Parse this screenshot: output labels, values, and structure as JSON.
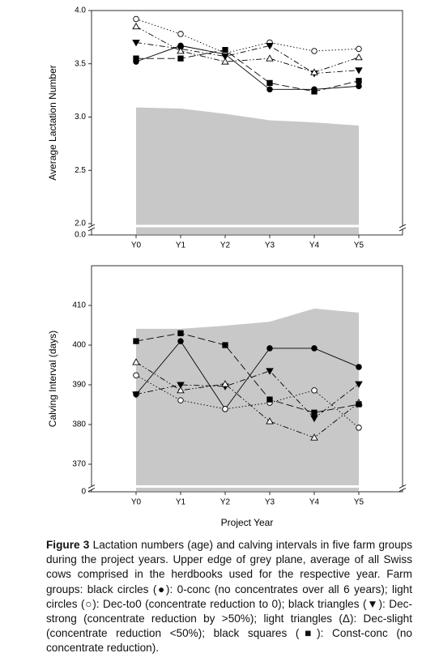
{
  "chart_data": [
    {
      "type": "line",
      "ylabel": "Average Lactation Number",
      "categories": [
        "Y0",
        "Y1",
        "Y2",
        "Y3",
        "Y4",
        "Y5"
      ],
      "ylim": [
        2.0,
        4.0
      ],
      "yticks": [
        {
          "value": 2.0,
          "label": "2.0"
        },
        2.5,
        {
          "value": 3.0,
          "label": "3.0"
        },
        3.5,
        {
          "value": 4.0,
          "label": "4.0"
        }
      ],
      "ybreak_tick": {
        "value": 0,
        "label": "0.0"
      },
      "area": {
        "color": "#c8c8c8",
        "values": [
          3.09,
          3.08,
          3.03,
          2.97,
          2.95,
          2.92
        ]
      },
      "series": [
        {
          "marker": "circle",
          "color": "#000000",
          "line_style": "solid",
          "values": [
            3.52,
            3.67,
            3.59,
            3.26,
            3.26,
            3.29
          ]
        },
        {
          "marker": "circle",
          "color": "#ffffff",
          "line_style": "dotted",
          "values": [
            3.92,
            3.78,
            3.6,
            3.7,
            3.62,
            3.64
          ]
        },
        {
          "marker": "triangle-down",
          "color": "#000000",
          "line_style": "dashdot",
          "values": [
            3.7,
            3.64,
            3.57,
            3.67,
            3.41,
            3.44
          ]
        },
        {
          "marker": "triangle-up",
          "color": "#ffffff",
          "line_style": "dashdotdot",
          "values": [
            3.85,
            3.62,
            3.52,
            3.55,
            3.42,
            3.56
          ]
        },
        {
          "marker": "square",
          "color": "#000000",
          "line_style": "dashed",
          "values": [
            3.55,
            3.55,
            3.63,
            3.32,
            3.24,
            3.34
          ]
        }
      ]
    },
    {
      "type": "line",
      "ylabel": "Calving Interval (days)",
      "xlabel": "Project Year",
      "categories": [
        "Y0",
        "Y1",
        "Y2",
        "Y3",
        "Y4",
        "Y5"
      ],
      "ylim": [
        365,
        420
      ],
      "yticks": [
        370,
        380,
        390,
        400,
        410
      ],
      "ybreak_tick": 0,
      "area": {
        "color": "#c8c8c8",
        "values": [
          404.1,
          404.1,
          404.9,
          405.9,
          409.2,
          408.2
        ]
      },
      "series": [
        {
          "marker": "circle",
          "color": "#000000",
          "line_style": "solid",
          "values": [
            387.6,
            401.0,
            383.9,
            399.2,
            399.2,
            394.5
          ]
        },
        {
          "marker": "circle",
          "color": "#ffffff",
          "line_style": "dotted",
          "values": [
            392.4,
            386.1,
            383.9,
            385.5,
            388.6,
            379.2
          ]
        },
        {
          "marker": "triangle-down",
          "color": "#000000",
          "line_style": "dashdot",
          "values": [
            387.6,
            390.0,
            389.6,
            393.5,
            381.6,
            390.2
          ]
        },
        {
          "marker": "triangle-up",
          "color": "#ffffff",
          "line_style": "dashdotdot",
          "values": [
            395.7,
            388.6,
            390.2,
            380.8,
            376.7,
            385.5
          ]
        },
        {
          "marker": "square",
          "color": "#000000",
          "line_style": "dashed",
          "values": [
            401.0,
            403.0,
            400.0,
            386.3,
            383.0,
            385.1
          ]
        }
      ]
    }
  ],
  "caption": {
    "label": "Figure 3",
    "text": "Lactation numbers (age) and calving intervals in five farm groups during the project years. Upper edge of grey plane, average of all Swiss cows comprised in the herdbooks used for the respective year. Farm groups: black circles (●): 0-conc (no concentrates over all 6 years); light circles (○): Dec-to0 (concentrate reduction to 0); black triangles (▼): Dec-strong (concentrate reduction by >50%); light triangles (Δ): Dec-slight (concentrate reduction <50%); black squares (■): Const-conc (no concentrate reduction)."
  }
}
